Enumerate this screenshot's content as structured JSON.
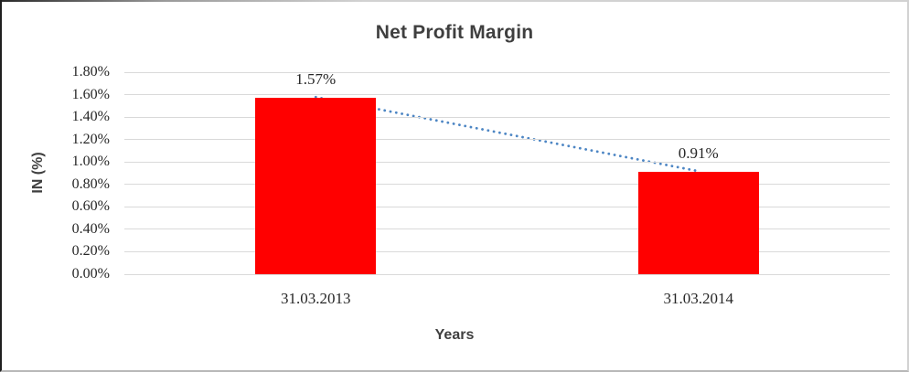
{
  "chart_data": {
    "type": "bar",
    "title": "Net Profit Margin",
    "xlabel": "Years",
    "ylabel": "IN (%)",
    "categories": [
      "31.03.2013",
      "31.03.2014"
    ],
    "series": [
      {
        "name": "Net Profit Margin",
        "values": [
          1.57,
          0.91
        ]
      }
    ],
    "data_labels": [
      "1.57%",
      "0.91%"
    ],
    "y_ticks": [
      "0.00%",
      "0.20%",
      "0.40%",
      "0.60%",
      "0.80%",
      "1.00%",
      "1.20%",
      "1.40%",
      "1.60%",
      "1.80%"
    ],
    "ylim": [
      0,
      1.8
    ],
    "y_tick_step": 0.2,
    "unit": "%",
    "grid": true,
    "legend": false,
    "trendline": {
      "type": "linear",
      "style": "dotted"
    },
    "colors": {
      "bar": "#ff0000",
      "gridline": "#d9d9d9",
      "trendline": "#4d86c4",
      "heading_text": "#3f3f3f",
      "tick_text": "#262626"
    }
  }
}
